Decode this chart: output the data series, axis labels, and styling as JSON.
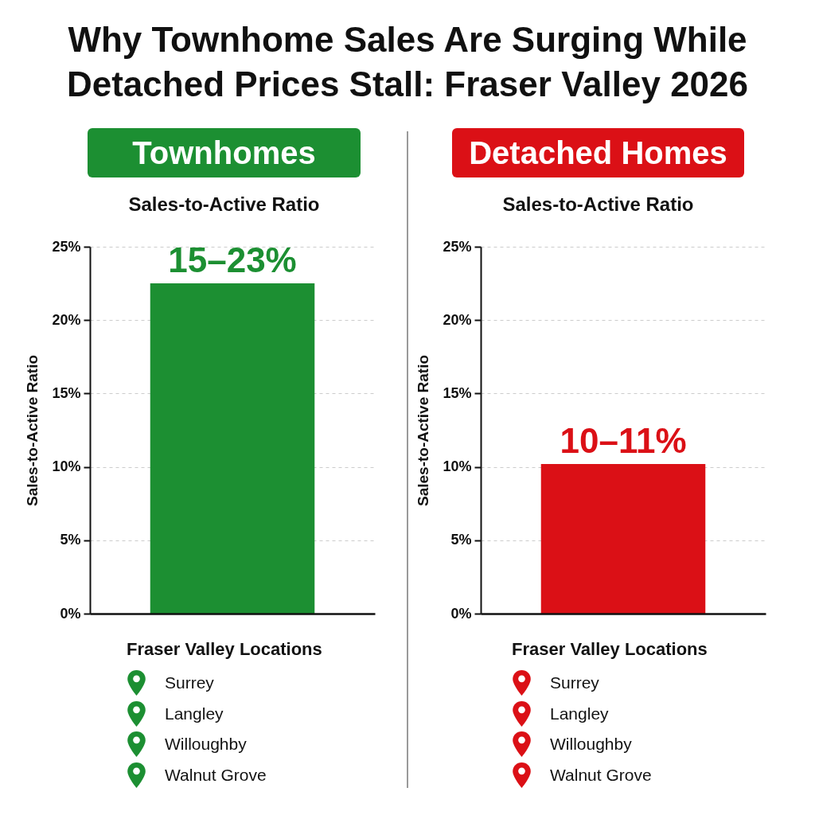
{
  "chart_data": [
    {
      "type": "other",
      "title": "Why Townhome Sales Are Surging While Detached Prices Stall: Fraser Valley 2026"
    },
    {
      "type": "bar",
      "title": "Townhomes",
      "subtitle": "Sales-to-Active Ratio",
      "ylabel": "Sales-to-Active Ratio",
      "xlabel": "Fraser Valley Locations",
      "categories": [
        null
      ],
      "values": [
        22.5
      ],
      "color": "#1c8f32",
      "ylim": [
        0,
        25
      ],
      "yticks": [
        {
          "value": 0,
          "label": "0%"
        },
        {
          "value": 5,
          "label": "5%"
        },
        {
          "value": 10,
          "label": "10%"
        },
        {
          "value": 15,
          "label": "15%"
        },
        {
          "value": 20,
          "label": "20%"
        },
        {
          "value": 25,
          "label": "25%"
        }
      ],
      "grid": "y",
      "annotations": [
        {
          "text": "15–23%",
          "y": 22.5
        },
        "Surrey",
        "Langley",
        "Willoughby",
        "Walnut Grove"
      ]
    },
    {
      "type": "bar",
      "title": "Detached Homes",
      "subtitle": "Sales-to-Active Ratio",
      "ylabel": "Sales-to-Active Ratio",
      "xlabel": "Fraser Valley Locations",
      "categories": [
        null
      ],
      "values": [
        10.2
      ],
      "color": "#db1016",
      "ylim": [
        0,
        25
      ],
      "yticks": [
        {
          "value": 0,
          "label": "0%"
        },
        {
          "value": 5,
          "label": "5%"
        },
        {
          "value": 10,
          "label": "10%"
        },
        {
          "value": 15,
          "label": "15%"
        },
        {
          "value": 20,
          "label": "20%"
        },
        {
          "value": 25,
          "label": "25%"
        }
      ],
      "grid": "y",
      "annotations": [
        {
          "text": "10–11%",
          "y": 10.2
        },
        "Surrey",
        "Langley",
        "Willoughby",
        "Walnut Grove"
      ]
    }
  ]
}
